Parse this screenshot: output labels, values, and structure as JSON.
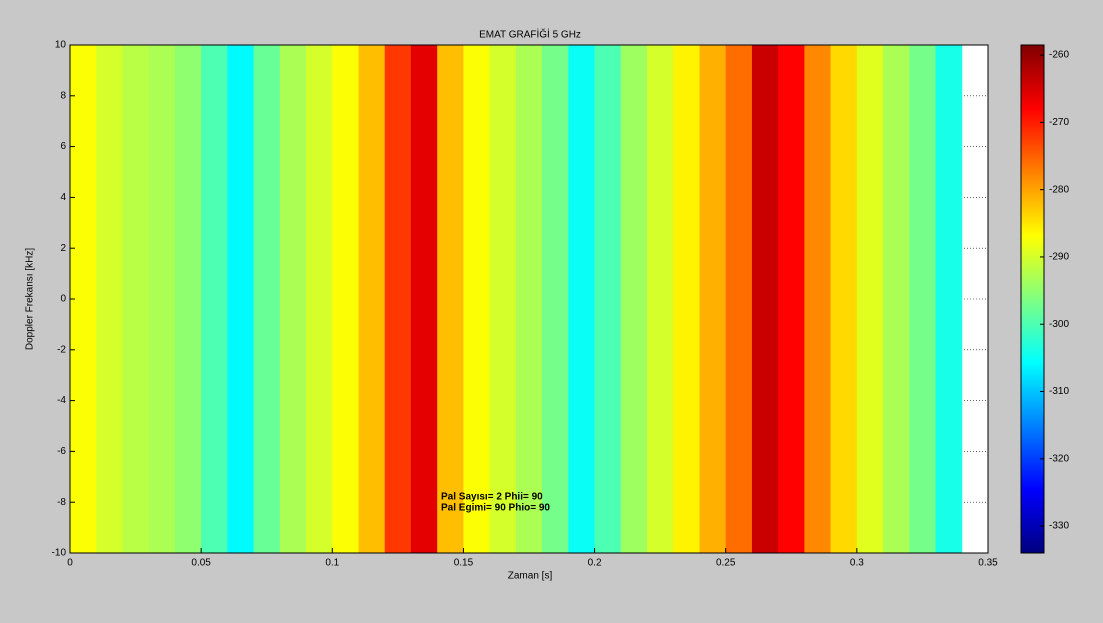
{
  "chart_data": {
    "type": "heatmap",
    "title": "EMAT GRAFİĞİ 5 GHz",
    "x_label": "Zaman [s]",
    "y_label": "Doppler Frekansı [kHz]",
    "x_bins": [
      0,
      0.01,
      0.02,
      0.03,
      0.04,
      0.05,
      0.06,
      0.07,
      0.08,
      0.09,
      0.1,
      0.11,
      0.12,
      0.13,
      0.14,
      0.15,
      0.16,
      0.17,
      0.18,
      0.19,
      0.2,
      0.21,
      0.22,
      0.23,
      0.24,
      0.25,
      0.26,
      0.27,
      0.28,
      0.29,
      0.3,
      0.31,
      0.32,
      0.33,
      0.34
    ],
    "y_bins": [
      -10,
      10
    ],
    "values": [
      [
        -287,
        -290,
        -292,
        -293,
        -295,
        -300,
        -306,
        -298,
        -293,
        -290,
        -287,
        -282,
        -272,
        -266,
        -282,
        -287,
        -290,
        -293,
        -297,
        -305,
        -300,
        -294,
        -290,
        -286,
        -281,
        -276,
        -264,
        -268,
        -278,
        -284,
        -289,
        -293,
        -297,
        -304
      ]
    ],
    "colormap": "jet",
    "clim": [
      -334,
      -258.5
    ],
    "cticks": [
      -330,
      -320,
      -310,
      -300,
      -290,
      -280,
      -270,
      -260
    ],
    "xlim": [
      0,
      0.35
    ],
    "xticks": [
      0,
      0.05,
      0.1,
      0.15,
      0.2,
      0.25,
      0.3,
      0.35
    ],
    "ylim": [
      -10,
      10
    ],
    "yticks": [
      -10,
      -8,
      -6,
      -4,
      -2,
      0,
      2,
      4,
      6,
      8,
      10
    ],
    "grid": true,
    "annotations": [
      "Pal Sayısı= 2 Phii= 90",
      "Pal Egimi= 90 Phio= 90"
    ]
  }
}
